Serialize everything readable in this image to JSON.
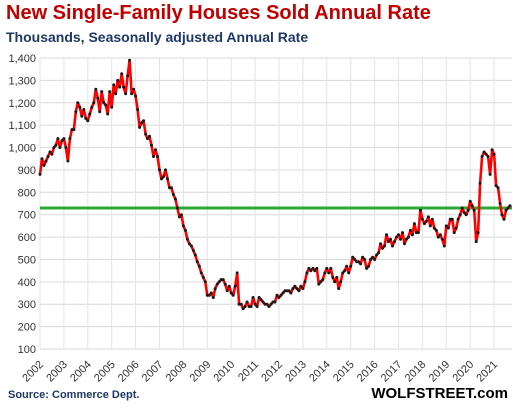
{
  "chart_data": {
    "type": "line",
    "title": "New Single-Family Houses Sold Annual Rate",
    "subtitle": "Thousands, Seasonally adjusted Annual Rate",
    "ylabel": "",
    "xlabel": "",
    "ylim": [
      100,
      1400
    ],
    "xlim": [
      2002.0,
      2021.75
    ],
    "y_ticks": [
      "100",
      "200",
      "300",
      "400",
      "500",
      "600",
      "700",
      "800",
      "900",
      "1,000",
      "1,100",
      "1,200",
      "1,300",
      "1,400"
    ],
    "x_ticks": [
      "2002",
      "2003",
      "2004",
      "2005",
      "2006",
      "2007",
      "2008",
      "2009",
      "2010",
      "2011",
      "2012",
      "2013",
      "2014",
      "2015",
      "2016",
      "2017",
      "2018",
      "2019",
      "2020",
      "2021"
    ],
    "grid": true,
    "legend": "none",
    "reference_line": {
      "value": 730,
      "color": "#2aa836"
    },
    "series": [
      {
        "color": "#ff0000",
        "marker_color": "#1a1a1a",
        "x": [
          2002.0,
          2002.083,
          2002.167,
          2002.25,
          2002.333,
          2002.417,
          2002.5,
          2002.583,
          2002.667,
          2002.75,
          2002.833,
          2002.917,
          2003.0,
          2003.083,
          2003.167,
          2003.25,
          2003.333,
          2003.417,
          2003.5,
          2003.583,
          2003.667,
          2003.75,
          2003.833,
          2003.917,
          2004.0,
          2004.083,
          2004.167,
          2004.25,
          2004.333,
          2004.417,
          2004.5,
          2004.583,
          2004.667,
          2004.75,
          2004.833,
          2004.917,
          2005.0,
          2005.083,
          2005.167,
          2005.25,
          2005.333,
          2005.417,
          2005.5,
          2005.583,
          2005.667,
          2005.75,
          2005.833,
          2005.917,
          2006.0,
          2006.083,
          2006.167,
          2006.25,
          2006.333,
          2006.417,
          2006.5,
          2006.583,
          2006.667,
          2006.75,
          2006.833,
          2006.917,
          2007.0,
          2007.083,
          2007.167,
          2007.25,
          2007.333,
          2007.417,
          2007.5,
          2007.583,
          2007.667,
          2007.75,
          2007.833,
          2007.917,
          2008.0,
          2008.083,
          2008.167,
          2008.25,
          2008.333,
          2008.417,
          2008.5,
          2008.583,
          2008.667,
          2008.75,
          2008.833,
          2008.917,
          2009.0,
          2009.083,
          2009.167,
          2009.25,
          2009.333,
          2009.417,
          2009.5,
          2009.583,
          2009.667,
          2009.75,
          2009.833,
          2009.917,
          2010.0,
          2010.083,
          2010.167,
          2010.25,
          2010.333,
          2010.417,
          2010.5,
          2010.583,
          2010.667,
          2010.75,
          2010.833,
          2010.917,
          2011.0,
          2011.083,
          2011.167,
          2011.25,
          2011.333,
          2011.417,
          2011.5,
          2011.583,
          2011.667,
          2011.75,
          2011.833,
          2011.917,
          2012.0,
          2012.083,
          2012.167,
          2012.25,
          2012.333,
          2012.417,
          2012.5,
          2012.583,
          2012.667,
          2012.75,
          2012.833,
          2012.917,
          2013.0,
          2013.083,
          2013.167,
          2013.25,
          2013.333,
          2013.417,
          2013.5,
          2013.583,
          2013.667,
          2013.75,
          2013.833,
          2013.917,
          2014.0,
          2014.083,
          2014.167,
          2014.25,
          2014.333,
          2014.417,
          2014.5,
          2014.583,
          2014.667,
          2014.75,
          2014.833,
          2014.917,
          2015.0,
          2015.083,
          2015.167,
          2015.25,
          2015.333,
          2015.417,
          2015.5,
          2015.583,
          2015.667,
          2015.75,
          2015.833,
          2015.917,
          2016.0,
          2016.083,
          2016.167,
          2016.25,
          2016.333,
          2016.417,
          2016.5,
          2016.583,
          2016.667,
          2016.75,
          2016.833,
          2016.917,
          2017.0,
          2017.083,
          2017.167,
          2017.25,
          2017.333,
          2017.417,
          2017.5,
          2017.583,
          2017.667,
          2017.75,
          2017.833,
          2017.917,
          2018.0,
          2018.083,
          2018.167,
          2018.25,
          2018.333,
          2018.417,
          2018.5,
          2018.583,
          2018.667,
          2018.75,
          2018.833,
          2018.917,
          2019.0,
          2019.083,
          2019.167,
          2019.25,
          2019.333,
          2019.417,
          2019.5,
          2019.583,
          2019.667,
          2019.75,
          2019.833,
          2019.917,
          2020.0,
          2020.083,
          2020.167,
          2020.25,
          2020.333,
          2020.417,
          2020.5,
          2020.583,
          2020.667,
          2020.75,
          2020.833,
          2020.917,
          2021.0,
          2021.083,
          2021.167,
          2021.25,
          2021.333,
          2021.417,
          2021.5
        ],
        "values": [
          880,
          950,
          920,
          940,
          960,
          980,
          970,
          1000,
          1010,
          1040,
          1000,
          1030,
          1040,
          1000,
          940,
          1040,
          1080,
          1080,
          1160,
          1200,
          1180,
          1140,
          1170,
          1130,
          1120,
          1150,
          1180,
          1200,
          1260,
          1220,
          1160,
          1250,
          1200,
          1190,
          1150,
          1250,
          1180,
          1280,
          1240,
          1300,
          1270,
          1330,
          1270,
          1240,
          1320,
          1390,
          1240,
          1260,
          1230,
          1170,
          1090,
          1110,
          1120,
          1060,
          1040,
          1050,
          1010,
          960,
          990,
          960,
          900,
          860,
          870,
          900,
          860,
          820,
          820,
          790,
          770,
          730,
          690,
          700,
          650,
          630,
          590,
          570,
          560,
          540,
          520,
          490,
          470,
          440,
          420,
          400,
          340,
          340,
          350,
          330,
          370,
          390,
          400,
          410,
          410,
          390,
          360,
          380,
          350,
          340,
          380,
          440,
          300,
          300,
          280,
          290,
          310,
          290,
          290,
          330,
          300,
          290,
          330,
          320,
          310,
          300,
          300,
          290,
          300,
          310,
          310,
          340,
          330,
          340,
          350,
          360,
          360,
          360,
          350,
          370,
          380,
          370,
          360,
          380,
          370,
          400,
          440,
          460,
          450,
          460,
          450,
          460,
          390,
          400,
          410,
          440,
          460,
          440,
          460,
          420,
          400,
          420,
          370,
          400,
          440,
          450,
          470,
          440,
          470,
          510,
          500,
          490,
          490,
          480,
          510,
          500,
          460,
          470,
          500,
          510,
          500,
          520,
          530,
          570,
          550,
          560,
          610,
          580,
          590,
          560,
          580,
          600,
          610,
          590,
          620,
          570,
          590,
          600,
          630,
          610,
          660,
          620,
          620,
          720,
          680,
          660,
          670,
          690,
          650,
          680,
          640,
          630,
          600,
          610,
          590,
          560,
          650,
          640,
          680,
          680,
          620,
          640,
          680,
          700,
          730,
          710,
          700,
          720,
          760,
          740,
          720,
          580,
          620,
          840,
          960,
          980,
          970,
          960,
          880,
          990,
          970,
          830,
          820,
          750,
          700,
          680,
          720
        ],
        "end_values": [
          730,
          740
        ]
      }
    ]
  },
  "footer": {
    "source": "Source: Commerce Dept.",
    "brand": "WOLFSTREET.com"
  }
}
